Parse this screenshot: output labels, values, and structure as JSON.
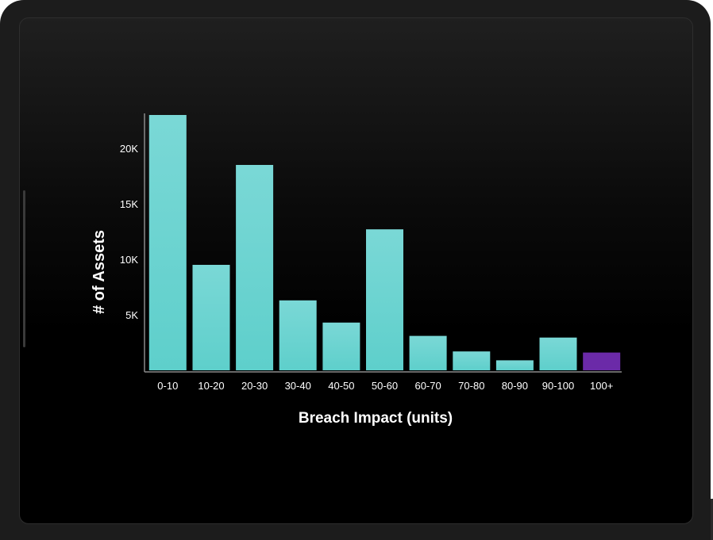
{
  "chart_data": {
    "type": "bar",
    "xlabel": "Breach Impact (units)",
    "ylabel": "# of Assets",
    "categories": [
      "0-10",
      "10-20",
      "20-30",
      "30-40",
      "40-50",
      "50-60",
      "60-70",
      "70-80",
      "80-90",
      "90-100",
      "100+"
    ],
    "values": [
      23000,
      9500,
      18500,
      6300,
      4300,
      12700,
      3100,
      1700,
      900,
      2950,
      1600
    ],
    "highlight_index": 10,
    "y_ticks": [
      {
        "value": 20000,
        "label": "20K"
      },
      {
        "value": 15000,
        "label": "15K"
      },
      {
        "value": 10000,
        "label": "10K"
      },
      {
        "value": 5000,
        "label": "5K"
      }
    ],
    "ylim": [
      0,
      23000
    ],
    "grid": false,
    "bar_color_top": "#7ad8d6",
    "bar_color_bottom": "#5ecfcb",
    "highlight_color": "#6b2aa8",
    "axis_color": "#8a8a8a",
    "text_color": "#ffffff"
  }
}
